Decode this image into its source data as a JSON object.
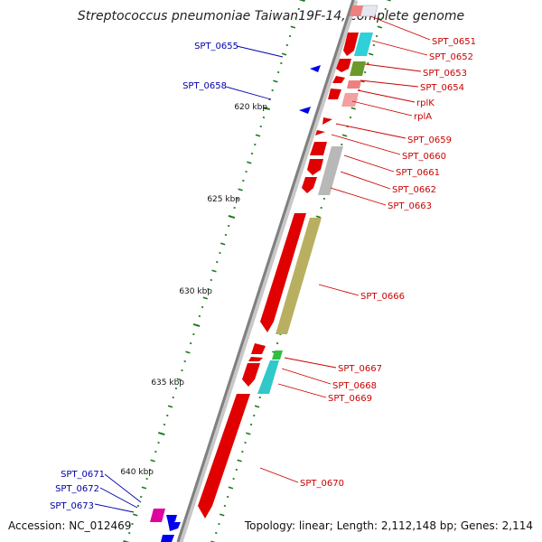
{
  "title": "Streptococcus pneumoniae Taiwan19F-14, complete genome",
  "footer": {
    "accession": "Accession: NC_012469",
    "summary": "Topology: linear; Length: 2,112,148 bp; Genes: 2,114"
  },
  "colors": {
    "backbone": "#808080",
    "forward_gene": "#ff0000",
    "reverse_gene": "#0000ff",
    "label_forward": "#cc0000",
    "label_reverse": "#0000aa",
    "tick": "#1a7a1a"
  },
  "ticks": [
    {
      "kbp": 620,
      "label": "620 kbp"
    },
    {
      "kbp": 625,
      "label": "625 kbp"
    },
    {
      "kbp": 630,
      "label": "630 kbp"
    },
    {
      "kbp": 635,
      "label": "635 kbp"
    },
    {
      "kbp": 640,
      "label": "640 kbp"
    }
  ],
  "genes_forward": [
    {
      "label": "SPT_0651"
    },
    {
      "label": "SPT_0652"
    },
    {
      "label": "SPT_0653"
    },
    {
      "label": "SPT_0654"
    },
    {
      "label": "rplK"
    },
    {
      "label": "rplA"
    },
    {
      "label": "SPT_0659"
    },
    {
      "label": "SPT_0660"
    },
    {
      "label": "SPT_0661"
    },
    {
      "label": "SPT_0662"
    },
    {
      "label": "SPT_0663"
    },
    {
      "label": "SPT_0666"
    },
    {
      "label": "SPT_0667"
    },
    {
      "label": "SPT_0668"
    },
    {
      "label": "SPT_0669"
    },
    {
      "label": "SPT_0670"
    }
  ],
  "genes_reverse": [
    {
      "label": "SPT_0655"
    },
    {
      "label": "SPT_0658"
    },
    {
      "label": "SPT_0671"
    },
    {
      "label": "SPT_0672"
    },
    {
      "label": "SPT_0673"
    }
  ]
}
